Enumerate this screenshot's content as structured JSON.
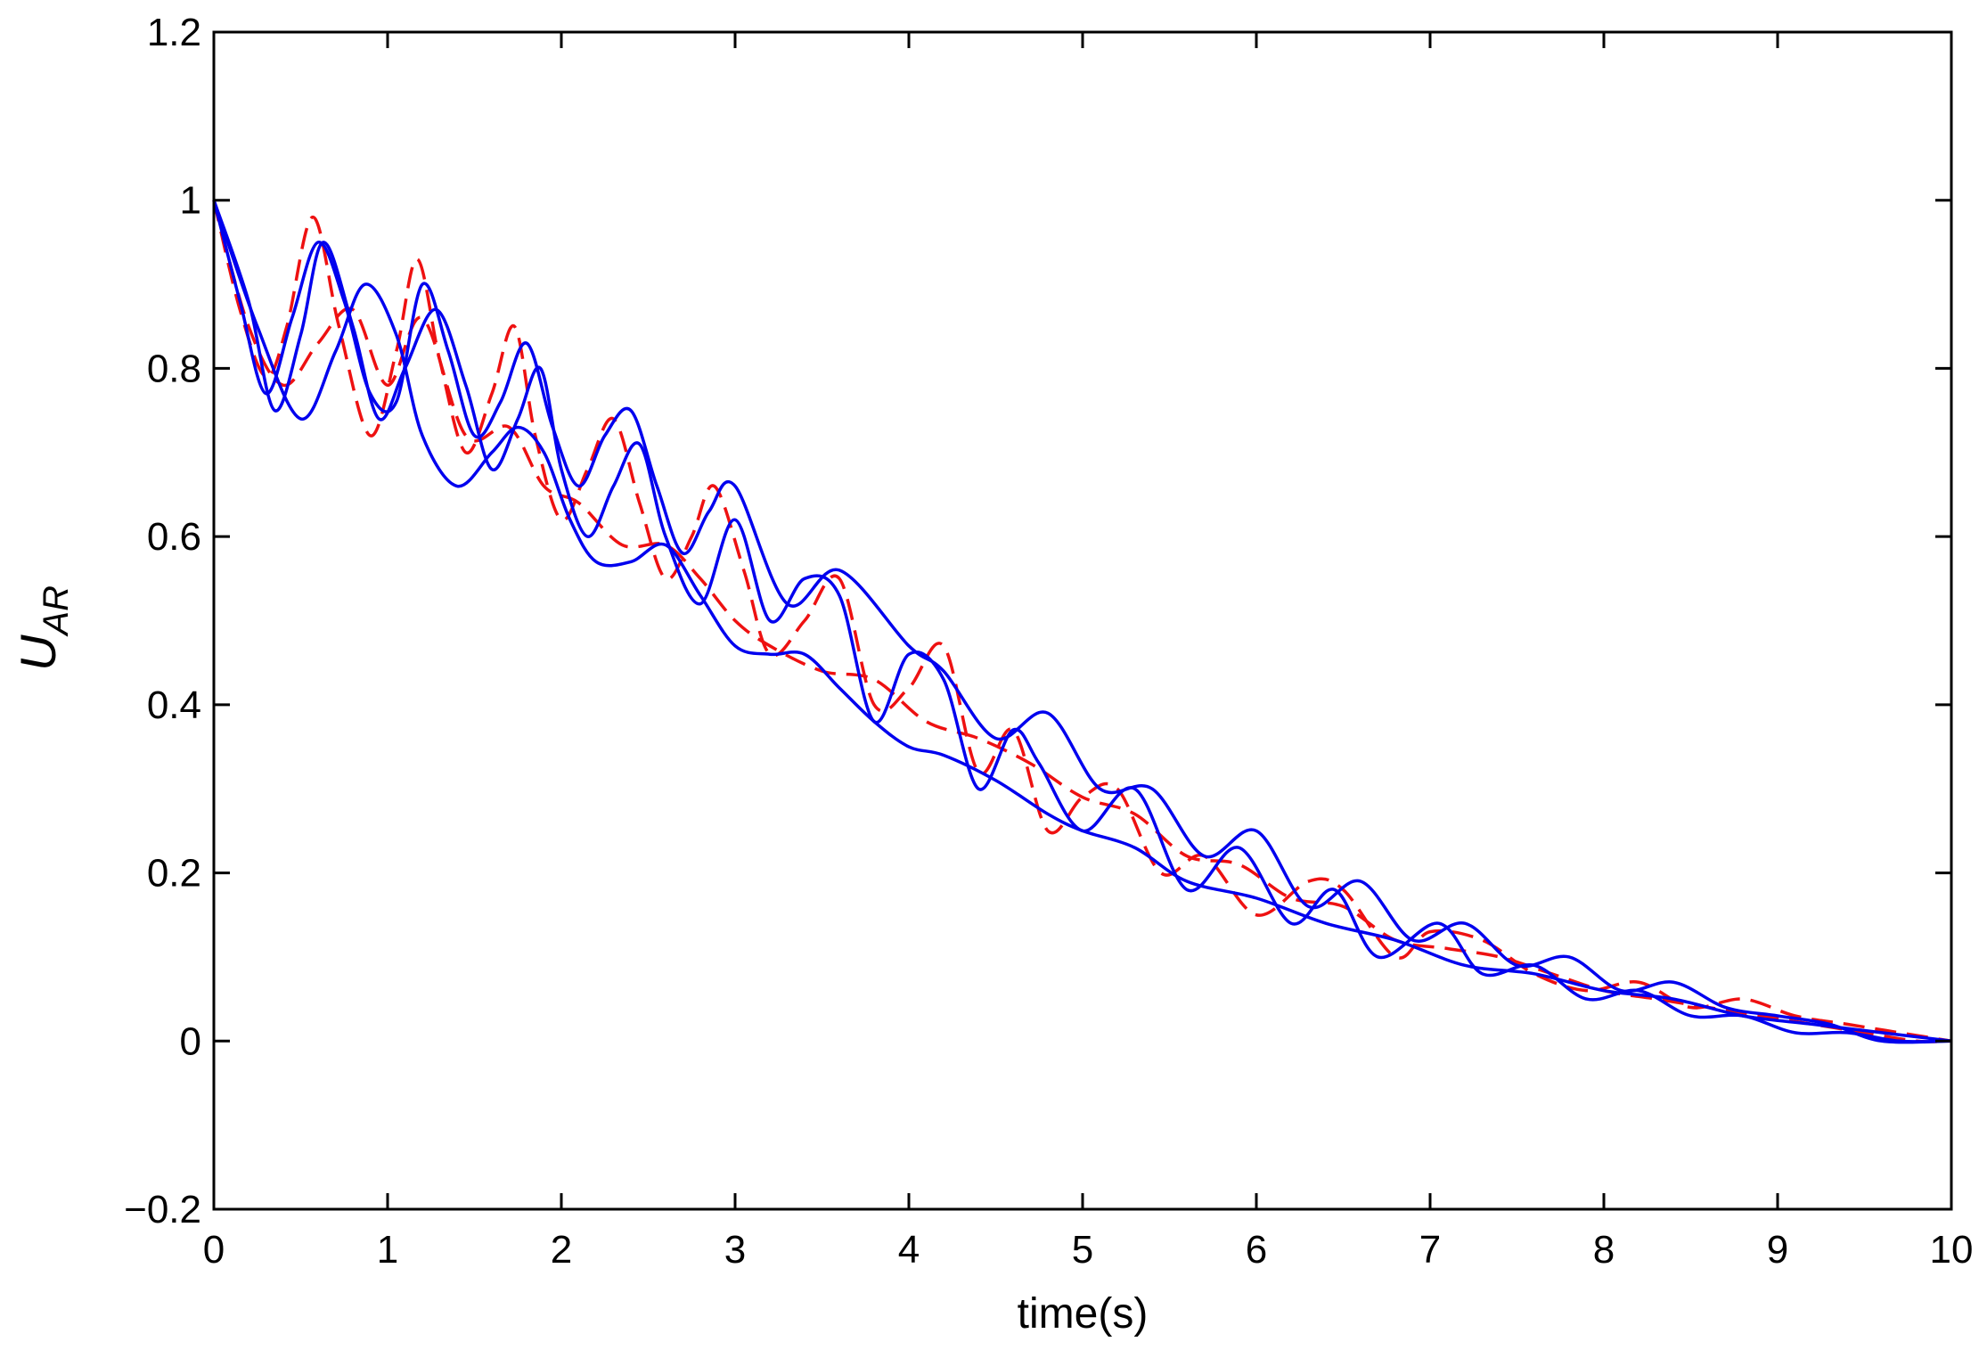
{
  "chart_data": {
    "type": "line",
    "title": "",
    "xlabel": "time(s)",
    "ylabel": {
      "main": "U",
      "subscript": "AR"
    },
    "xlim": [
      0,
      10
    ],
    "ylim": [
      -0.2,
      1.2
    ],
    "xticks": [
      0,
      1,
      2,
      3,
      4,
      5,
      6,
      7,
      8,
      9,
      10
    ],
    "yticks": [
      -0.2,
      0,
      0.2,
      0.4,
      0.6,
      0.8,
      1,
      1.2
    ],
    "xtick_labels": [
      "0",
      "1",
      "2",
      "3",
      "4",
      "5",
      "6",
      "7",
      "8",
      "9",
      "10"
    ],
    "ytick_labels": [
      "−0.2",
      "0",
      "0.2",
      "0.4",
      "0.6",
      "0.8",
      "1",
      "1.2"
    ],
    "grid": false,
    "legend": "none",
    "colors": {
      "solid": "#0000ee",
      "dashed": "#ee1111",
      "axes": "#000000"
    },
    "series": [
      {
        "style": "solid",
        "color": "#0000ee",
        "x": [
          0,
          0.15,
          0.3,
          0.45,
          0.6,
          0.75,
          0.9,
          1.05,
          1.2,
          1.35,
          1.5,
          1.65,
          1.8,
          1.95,
          2.1,
          2.25,
          2.4,
          2.55,
          2.7,
          2.85,
          3.0,
          3.3,
          3.6,
          4.0,
          4.2,
          4.5,
          4.8,
          5.1,
          5.4,
          5.7,
          6.0,
          6.3,
          6.6,
          6.9,
          7.2,
          7.5,
          7.8,
          8.1,
          8.4,
          8.7,
          9.0,
          9.3,
          9.6,
          10.0
        ],
        "y": [
          1.0,
          0.88,
          0.77,
          0.86,
          0.95,
          0.88,
          0.77,
          0.76,
          0.9,
          0.82,
          0.72,
          0.76,
          0.83,
          0.73,
          0.66,
          0.72,
          0.75,
          0.66,
          0.58,
          0.63,
          0.66,
          0.52,
          0.56,
          0.47,
          0.44,
          0.36,
          0.39,
          0.3,
          0.3,
          0.22,
          0.25,
          0.16,
          0.19,
          0.12,
          0.14,
          0.09,
          0.1,
          0.06,
          0.07,
          0.04,
          0.03,
          0.02,
          0.0,
          0.0
        ]
      },
      {
        "style": "solid",
        "color": "#0000ee",
        "x": [
          0,
          0.2,
          0.35,
          0.5,
          0.63,
          0.8,
          0.95,
          1.1,
          1.28,
          1.45,
          1.6,
          1.75,
          1.88,
          2.0,
          2.15,
          2.3,
          2.45,
          2.6,
          2.8,
          3.0,
          3.2,
          3.4,
          3.6,
          3.8,
          4.0,
          4.2,
          4.4,
          4.6,
          4.75,
          5.0,
          5.3,
          5.6,
          5.9,
          6.2,
          6.45,
          6.7,
          7.05,
          7.3,
          7.6,
          7.9,
          8.2,
          8.5,
          8.8,
          9.1,
          9.4,
          9.7,
          10.0
        ],
        "y": [
          1.0,
          0.88,
          0.75,
          0.84,
          0.95,
          0.85,
          0.74,
          0.8,
          0.87,
          0.78,
          0.68,
          0.74,
          0.8,
          0.68,
          0.6,
          0.66,
          0.71,
          0.6,
          0.52,
          0.62,
          0.5,
          0.55,
          0.53,
          0.38,
          0.46,
          0.43,
          0.3,
          0.37,
          0.33,
          0.25,
          0.3,
          0.18,
          0.23,
          0.14,
          0.18,
          0.1,
          0.14,
          0.08,
          0.09,
          0.05,
          0.06,
          0.03,
          0.03,
          0.01,
          0.01,
          0.0,
          0.0
        ]
      },
      {
        "style": "solid",
        "color": "#0000ee",
        "x": [
          0,
          0.25,
          0.5,
          0.7,
          0.87,
          1.05,
          1.2,
          1.4,
          1.6,
          1.75,
          1.9,
          2.05,
          2.2,
          2.4,
          2.6,
          2.8,
          3.0,
          3.2,
          3.4,
          3.6,
          3.8,
          4.0,
          4.2,
          4.5,
          4.8,
          5.0,
          5.3,
          5.6,
          6.0,
          6.4,
          6.8,
          7.2,
          7.6,
          8.0,
          8.4,
          8.8,
          9.2,
          9.6,
          10.0
        ],
        "y": [
          1.0,
          0.85,
          0.74,
          0.82,
          0.9,
          0.84,
          0.72,
          0.66,
          0.7,
          0.73,
          0.7,
          0.62,
          0.57,
          0.57,
          0.59,
          0.53,
          0.47,
          0.46,
          0.46,
          0.42,
          0.38,
          0.35,
          0.34,
          0.31,
          0.27,
          0.25,
          0.23,
          0.19,
          0.17,
          0.14,
          0.12,
          0.09,
          0.08,
          0.06,
          0.05,
          0.03,
          0.02,
          0.01,
          0.0
        ]
      },
      {
        "style": "dashed",
        "color": "#ee1111",
        "x": [
          0,
          0.15,
          0.3,
          0.42,
          0.57,
          0.72,
          0.9,
          1.05,
          1.17,
          1.3,
          1.45,
          1.6,
          1.73,
          1.85,
          2.0,
          2.15,
          2.3,
          2.45,
          2.6,
          2.75,
          2.88,
          3.05,
          3.2,
          3.4,
          3.6,
          3.8,
          4.0,
          4.2,
          4.4,
          4.6,
          4.8,
          5.0,
          5.2,
          5.45,
          5.7,
          6.0,
          6.3,
          6.5,
          6.8,
          7.0,
          7.3,
          7.6,
          7.9,
          8.2,
          8.5,
          8.8,
          9.1,
          9.4,
          9.7,
          10.0
        ],
        "y": [
          1.0,
          0.87,
          0.79,
          0.85,
          0.98,
          0.85,
          0.72,
          0.82,
          0.93,
          0.81,
          0.7,
          0.77,
          0.85,
          0.72,
          0.62,
          0.68,
          0.74,
          0.64,
          0.55,
          0.6,
          0.66,
          0.56,
          0.46,
          0.5,
          0.55,
          0.4,
          0.42,
          0.47,
          0.32,
          0.37,
          0.25,
          0.29,
          0.3,
          0.2,
          0.22,
          0.15,
          0.19,
          0.18,
          0.1,
          0.13,
          0.12,
          0.08,
          0.06,
          0.07,
          0.04,
          0.05,
          0.03,
          0.02,
          0.01,
          0.0
        ]
      },
      {
        "style": "dashed",
        "color": "#ee1111",
        "x": [
          0,
          0.2,
          0.4,
          0.6,
          0.8,
          1.0,
          1.2,
          1.45,
          1.7,
          1.9,
          2.1,
          2.35,
          2.6,
          2.8,
          3.0,
          3.2,
          3.5,
          3.8,
          4.1,
          4.4,
          4.7,
          5.0,
          5.3,
          5.6,
          5.9,
          6.2,
          6.5,
          6.8,
          7.1,
          7.4,
          7.7,
          8.0,
          8.3,
          8.6,
          8.9,
          9.2,
          9.5,
          9.8,
          10.0
        ],
        "y": [
          1.0,
          0.85,
          0.78,
          0.83,
          0.87,
          0.78,
          0.86,
          0.72,
          0.73,
          0.66,
          0.64,
          0.59,
          0.59,
          0.55,
          0.5,
          0.47,
          0.44,
          0.43,
          0.38,
          0.36,
          0.33,
          0.29,
          0.27,
          0.22,
          0.21,
          0.17,
          0.16,
          0.12,
          0.11,
          0.1,
          0.08,
          0.06,
          0.05,
          0.04,
          0.03,
          0.02,
          0.01,
          0.0,
          0.0
        ]
      }
    ]
  }
}
